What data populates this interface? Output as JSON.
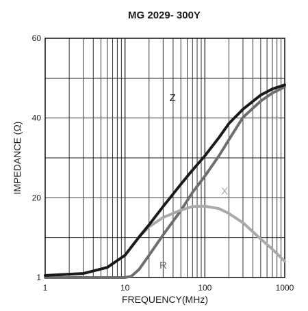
{
  "chart_data": {
    "type": "line",
    "title": "MG 2029-  300Y",
    "xlabel": "FREQUENCY(MHz)",
    "ylabel": "IMPEDANCE (Ω)",
    "xscale": "log",
    "xlim": [
      1,
      1000
    ],
    "ylim": [
      1,
      60
    ],
    "grid": true,
    "x_ticks": [
      {
        "value": 1,
        "label": "1"
      },
      {
        "value": 10,
        "label": "10"
      },
      {
        "value": 100,
        "label": "100"
      },
      {
        "value": 1000,
        "label": "1000"
      }
    ],
    "y_ticks": [
      {
        "value": 1,
        "label": "1"
      },
      {
        "value": 20,
        "label": "20"
      },
      {
        "value": 40,
        "label": "40"
      },
      {
        "value": 60,
        "label": "60"
      }
    ],
    "series": [
      {
        "name": "Z",
        "color": "#1a1a1a",
        "points": [
          [
            1,
            1.5
          ],
          [
            3,
            2
          ],
          [
            6,
            3.5
          ],
          [
            10,
            6.5
          ],
          [
            15,
            11
          ],
          [
            20,
            14
          ],
          [
            30,
            18.5
          ],
          [
            50,
            24
          ],
          [
            70,
            27.5
          ],
          [
            100,
            31
          ],
          [
            150,
            35.5
          ],
          [
            200,
            39
          ],
          [
            300,
            42.5
          ],
          [
            500,
            46
          ],
          [
            700,
            47.5
          ],
          [
            1000,
            48.5
          ]
        ]
      },
      {
        "name": "R",
        "color": "#6e6e6e",
        "points": [
          [
            1,
            1
          ],
          [
            5,
            1
          ],
          [
            10,
            1
          ],
          [
            12,
            1.3
          ],
          [
            15,
            3
          ],
          [
            20,
            6.5
          ],
          [
            30,
            11.5
          ],
          [
            50,
            17.5
          ],
          [
            70,
            22
          ],
          [
            100,
            26
          ],
          [
            150,
            31
          ],
          [
            200,
            35
          ],
          [
            300,
            40.5
          ],
          [
            500,
            44.5
          ],
          [
            700,
            46.5
          ],
          [
            1000,
            48
          ]
        ]
      },
      {
        "name": "X",
        "color": "#a9a9a9",
        "points": [
          [
            1,
            1.5
          ],
          [
            3,
            2
          ],
          [
            6,
            3.5
          ],
          [
            10,
            6.5
          ],
          [
            15,
            11
          ],
          [
            20,
            13.5
          ],
          [
            30,
            15.8
          ],
          [
            50,
            17.6
          ],
          [
            70,
            18.5
          ],
          [
            100,
            18.6
          ],
          [
            150,
            18
          ],
          [
            200,
            16.8
          ],
          [
            300,
            14.5
          ],
          [
            500,
            10.5
          ],
          [
            700,
            8
          ],
          [
            1000,
            5
          ]
        ]
      }
    ]
  }
}
